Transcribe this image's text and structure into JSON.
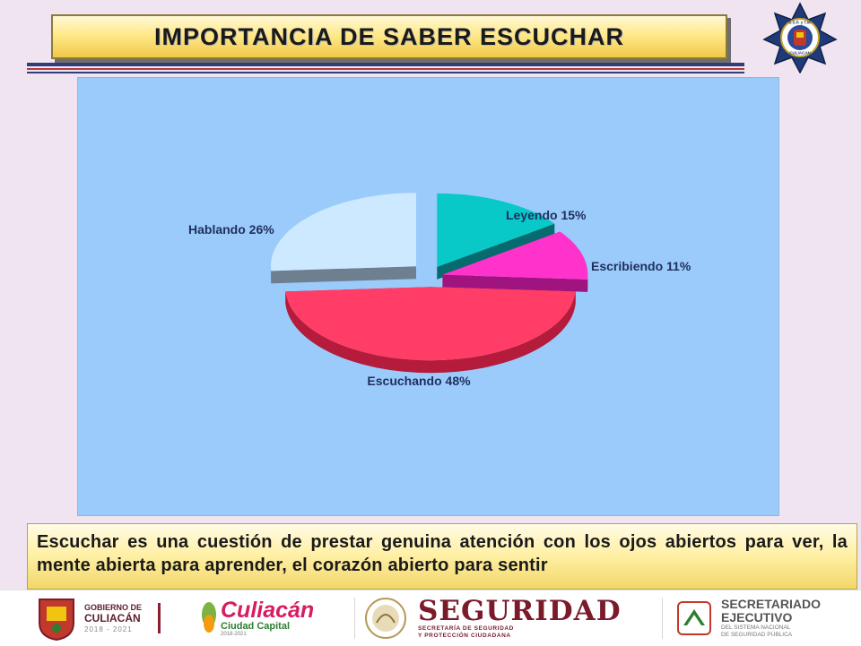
{
  "header": {
    "title": "IMPORTANCIA DE SABER ESCUCHAR"
  },
  "badge": {
    "icon": "police-star-badge-icon",
    "line1": "S.S.P. y T.M.",
    "line2": "CULIACAN"
  },
  "chart_data": {
    "type": "pie",
    "title": "",
    "labels": [
      "Leyendo 15%",
      "Escribiendo 11%",
      "Escuchando 48%",
      "Hablando 26%"
    ],
    "values": [
      15,
      11,
      48,
      26
    ],
    "colors": [
      "#08c8c8",
      "#ff33cc",
      "#ff3d66",
      "#cde9ff"
    ],
    "side_colors": [
      "#066b6e",
      "#a0147f",
      "#b51b3a",
      "#6e7f90"
    ],
    "label_color": "#1f2f5e",
    "background": "#9bcbfb",
    "style": "3d-exploded",
    "legend": "none"
  },
  "caption": {
    "text": "Escuchar es una cuestión de prestar genuina atención con los ojos abiertos para ver, la mente abierta para aprender, el corazón abierto para sentir"
  },
  "footer": {
    "gobierno": {
      "line1": "GOBIERNO DE",
      "line2": "CULIACÁN",
      "years": "2018 - 2021"
    },
    "culiacan": {
      "name": "Culiacán",
      "subtitle": "Ciudad Capital",
      "years": "2018-2021"
    },
    "seguridad": {
      "title": "SEGURIDAD",
      "line1": "SECRETARÍA DE SEGURIDAD",
      "line2": "Y PROTECCIÓN CIUDADANA"
    },
    "secretariado": {
      "line1": "SECRETARIADO",
      "line2": "EJECUTIVO",
      "line3": "DEL SISTEMA NACIONAL",
      "line4": "DE SEGURIDAD PÚBLICA"
    }
  }
}
